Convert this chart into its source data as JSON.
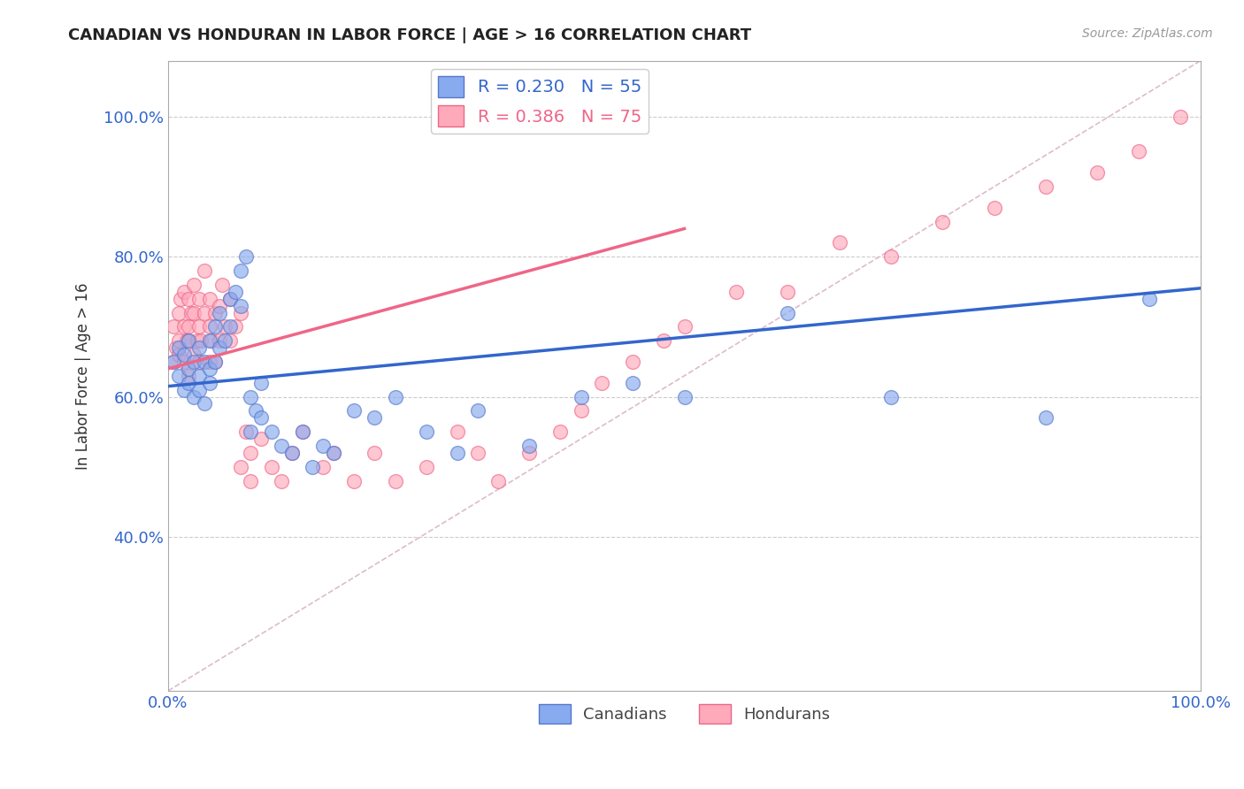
{
  "title": "CANADIAN VS HONDURAN IN LABOR FORCE | AGE > 16 CORRELATION CHART",
  "source_text": "Source: ZipAtlas.com",
  "ylabel": "In Labor Force | Age > 16",
  "xlim": [
    0.0,
    1.0
  ],
  "ylim": [
    0.18,
    1.08
  ],
  "xticks": [
    0.0,
    1.0
  ],
  "xtick_labels": [
    "0.0%",
    "100.0%"
  ],
  "yticks": [
    0.4,
    0.6,
    0.8,
    1.0
  ],
  "ytick_labels": [
    "40.0%",
    "60.0%",
    "80.0%",
    "100.0%"
  ],
  "grid_color": "#cccccc",
  "background_color": "#ffffff",
  "canadian_color": "#88aaee",
  "honduran_color": "#ffaabb",
  "canadian_edge": "#5577cc",
  "honduran_edge": "#ee6688",
  "trend_canadian_color": "#3366cc",
  "trend_honduran_color": "#ee6688",
  "ref_line_color": "#ddbbcc",
  "R_canadian": 0.23,
  "N_canadian": 55,
  "R_honduran": 0.386,
  "N_honduran": 75,
  "legend_label_canadian": "Canadians",
  "legend_label_honduran": "Hondurans",
  "canadians_x": [
    0.005,
    0.01,
    0.01,
    0.015,
    0.015,
    0.02,
    0.02,
    0.02,
    0.025,
    0.025,
    0.03,
    0.03,
    0.03,
    0.035,
    0.035,
    0.04,
    0.04,
    0.04,
    0.045,
    0.045,
    0.05,
    0.05,
    0.055,
    0.06,
    0.06,
    0.065,
    0.07,
    0.07,
    0.075,
    0.08,
    0.08,
    0.085,
    0.09,
    0.09,
    0.1,
    0.11,
    0.12,
    0.13,
    0.14,
    0.15,
    0.16,
    0.18,
    0.2,
    0.22,
    0.25,
    0.28,
    0.3,
    0.35,
    0.4,
    0.45,
    0.5,
    0.6,
    0.7,
    0.85,
    0.95
  ],
  "canadians_y": [
    0.65,
    0.63,
    0.67,
    0.61,
    0.66,
    0.64,
    0.62,
    0.68,
    0.6,
    0.65,
    0.63,
    0.67,
    0.61,
    0.65,
    0.59,
    0.68,
    0.64,
    0.62,
    0.7,
    0.65,
    0.72,
    0.67,
    0.68,
    0.74,
    0.7,
    0.75,
    0.73,
    0.78,
    0.8,
    0.6,
    0.55,
    0.58,
    0.62,
    0.57,
    0.55,
    0.53,
    0.52,
    0.55,
    0.5,
    0.53,
    0.52,
    0.58,
    0.57,
    0.6,
    0.55,
    0.52,
    0.58,
    0.53,
    0.6,
    0.62,
    0.6,
    0.72,
    0.6,
    0.57,
    0.74
  ],
  "hondurans_x": [
    0.005,
    0.005,
    0.008,
    0.01,
    0.01,
    0.01,
    0.012,
    0.015,
    0.015,
    0.015,
    0.018,
    0.02,
    0.02,
    0.02,
    0.02,
    0.022,
    0.025,
    0.025,
    0.025,
    0.028,
    0.03,
    0.03,
    0.03,
    0.032,
    0.035,
    0.035,
    0.04,
    0.04,
    0.04,
    0.042,
    0.045,
    0.045,
    0.05,
    0.05,
    0.052,
    0.055,
    0.06,
    0.06,
    0.065,
    0.07,
    0.07,
    0.075,
    0.08,
    0.08,
    0.09,
    0.1,
    0.11,
    0.12,
    0.13,
    0.15,
    0.16,
    0.18,
    0.2,
    0.22,
    0.25,
    0.28,
    0.3,
    0.32,
    0.35,
    0.38,
    0.4,
    0.42,
    0.45,
    0.48,
    0.5,
    0.55,
    0.6,
    0.65,
    0.7,
    0.75,
    0.8,
    0.85,
    0.9,
    0.94,
    0.98
  ],
  "hondurans_y": [
    0.65,
    0.7,
    0.67,
    0.66,
    0.72,
    0.68,
    0.74,
    0.65,
    0.7,
    0.75,
    0.68,
    0.63,
    0.7,
    0.74,
    0.68,
    0.72,
    0.66,
    0.72,
    0.76,
    0.68,
    0.65,
    0.7,
    0.74,
    0.68,
    0.72,
    0.78,
    0.65,
    0.7,
    0.74,
    0.68,
    0.72,
    0.65,
    0.68,
    0.73,
    0.76,
    0.7,
    0.68,
    0.74,
    0.7,
    0.72,
    0.5,
    0.55,
    0.52,
    0.48,
    0.54,
    0.5,
    0.48,
    0.52,
    0.55,
    0.5,
    0.52,
    0.48,
    0.52,
    0.48,
    0.5,
    0.55,
    0.52,
    0.48,
    0.52,
    0.55,
    0.58,
    0.62,
    0.65,
    0.68,
    0.7,
    0.75,
    0.75,
    0.82,
    0.8,
    0.85,
    0.87,
    0.9,
    0.92,
    0.95,
    1.0
  ],
  "trend_canadian_start_y": 0.615,
  "trend_canadian_end_y": 0.755,
  "trend_honduran_start_y": 0.64,
  "trend_honduran_end_y": 0.84
}
